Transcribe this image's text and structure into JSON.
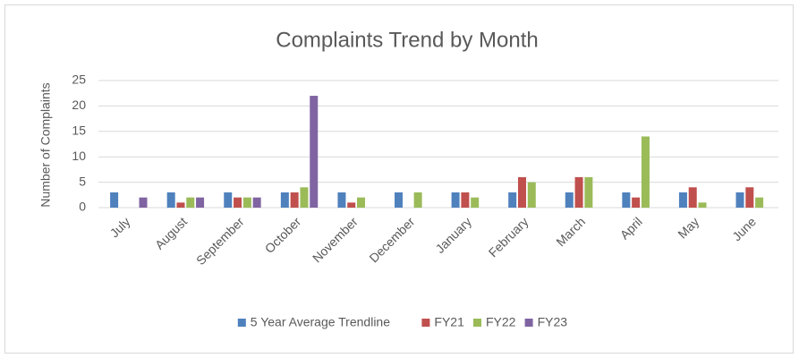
{
  "chart_data": {
    "type": "bar",
    "title": "Complaints Trend by Month",
    "y_label": "Number of Complaints",
    "categories": [
      "July",
      "August",
      "September",
      "October",
      "November",
      "December",
      "January",
      "February",
      "March",
      "April",
      "May",
      "June"
    ],
    "series": [
      {
        "name": "5 Year Average Trendline",
        "color": "#4f81bd",
        "values": [
          3,
          3,
          3,
          3,
          3,
          3,
          3,
          3,
          3,
          3,
          3,
          3
        ]
      },
      {
        "name": "FY21",
        "color": "#c0504d",
        "values": [
          0,
          1,
          2,
          3,
          1,
          0,
          3,
          6,
          6,
          2,
          4,
          4
        ]
      },
      {
        "name": "FY22",
        "color": "#9bbb59",
        "values": [
          0,
          2,
          2,
          4,
          2,
          3,
          2,
          5,
          6,
          14,
          1,
          2
        ]
      },
      {
        "name": "FY23",
        "color": "#8064a2",
        "values": [
          2,
          2,
          2,
          22,
          null,
          null,
          null,
          null,
          null,
          null,
          null,
          null
        ]
      }
    ],
    "ylim": [
      0,
      25
    ],
    "yticks": [
      0,
      5,
      10,
      15,
      20,
      25
    ],
    "grid": true,
    "legend": "bottom"
  }
}
